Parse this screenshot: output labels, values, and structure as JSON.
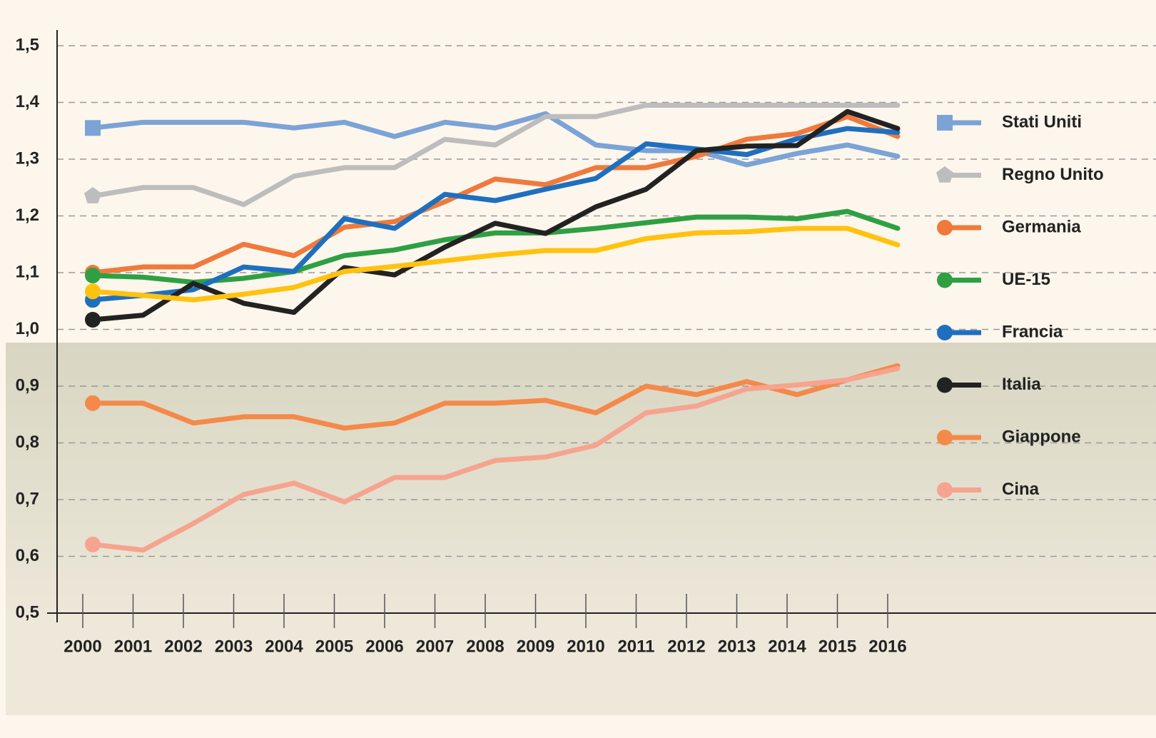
{
  "chart_data": {
    "type": "line",
    "categories": [
      "2000",
      "2001",
      "2002",
      "2003",
      "2004",
      "2005",
      "2006",
      "2007",
      "2008",
      "2009",
      "2010",
      "2011",
      "2012",
      "2013",
      "2014",
      "2015",
      "2016"
    ],
    "ylim": [
      0.5,
      1.5
    ],
    "yticks": [
      {
        "value": 0.5,
        "label": "0,5"
      },
      {
        "value": 0.6,
        "label": "0,6"
      },
      {
        "value": 0.7,
        "label": "0,7"
      },
      {
        "value": 0.8,
        "label": "0,8"
      },
      {
        "value": 0.9,
        "label": "0,9"
      },
      {
        "value": 1.0,
        "label": "1,0"
      },
      {
        "value": 1.1,
        "label": "1,1"
      },
      {
        "value": 1.2,
        "label": "1,2"
      },
      {
        "value": 1.3,
        "label": "1,3"
      },
      {
        "value": 1.4,
        "label": "1,4"
      },
      {
        "value": 1.5,
        "label": "1,5"
      }
    ],
    "grid": true,
    "legend": "right",
    "series": [
      {
        "name": "Stati Uniti",
        "color": "#7ba3d6",
        "marker": "square",
        "values": [
          1.355,
          1.365,
          1.365,
          1.365,
          1.355,
          1.365,
          1.34,
          1.365,
          1.355,
          1.38,
          1.325,
          1.315,
          1.315,
          1.29,
          1.31,
          1.325,
          1.305
        ]
      },
      {
        "name": "Regno Unito",
        "color": "#bdbdbd",
        "marker": "pentagon",
        "values": [
          1.235,
          1.25,
          1.25,
          1.22,
          1.27,
          1.285,
          1.285,
          1.335,
          1.325,
          1.375,
          1.375,
          1.395,
          1.395,
          1.395,
          1.395,
          1.395,
          1.395
        ]
      },
      {
        "name": "Germania",
        "color": "#ef7a3c",
        "marker": "circle",
        "values": [
          1.1,
          1.11,
          1.11,
          1.15,
          1.13,
          1.18,
          1.19,
          1.225,
          1.265,
          1.255,
          1.285,
          1.285,
          1.305,
          1.335,
          1.345,
          1.375,
          1.34
        ]
      },
      {
        "name": "UE-15",
        "color": "#2ea043",
        "marker": "circle",
        "values": [
          1.095,
          1.092,
          1.083,
          1.09,
          1.102,
          1.13,
          1.14,
          1.158,
          1.17,
          1.17,
          1.178,
          1.188,
          1.198,
          1.198,
          1.195,
          1.208,
          1.178
        ]
      },
      {
        "name": "Francia",
        "color": "#1f6fbf",
        "marker": "circle",
        "values": [
          1.052,
          1.06,
          1.07,
          1.11,
          1.102,
          1.195,
          1.178,
          1.238,
          1.227,
          1.247,
          1.266,
          1.327,
          1.318,
          1.308,
          1.336,
          1.354,
          1.347
        ]
      },
      {
        "name": "Italia",
        "color": "#222222",
        "marker": "circle",
        "values": [
          1.017,
          1.025,
          1.081,
          1.046,
          1.03,
          1.109,
          1.096,
          1.145,
          1.187,
          1.169,
          1.216,
          1.247,
          1.315,
          1.323,
          1.324,
          1.384,
          1.354
        ]
      },
      {
        "color": "#ffc20e",
        "marker": "circle",
        "values": [
          1.067,
          1.06,
          1.052,
          1.062,
          1.074,
          1.102,
          1.111,
          1.121,
          1.131,
          1.139,
          1.139,
          1.16,
          1.17,
          1.172,
          1.178,
          1.178,
          1.149
        ]
      },
      {
        "name": "Giappone",
        "color": "#f4894a",
        "marker": "circle",
        "values": [
          0.87,
          0.87,
          0.835,
          0.846,
          0.846,
          0.826,
          0.835,
          0.87,
          0.87,
          0.875,
          0.853,
          0.9,
          0.885,
          0.908,
          0.885,
          0.911,
          0.936
        ]
      },
      {
        "name": "Cina",
        "color": "#f6a48f",
        "marker": "circle",
        "values": [
          0.621,
          0.611,
          0.658,
          0.709,
          0.729,
          0.696,
          0.739,
          0.739,
          0.769,
          0.775,
          0.796,
          0.853,
          0.865,
          0.895,
          0.902,
          0.911,
          0.931
        ]
      }
    ]
  }
}
